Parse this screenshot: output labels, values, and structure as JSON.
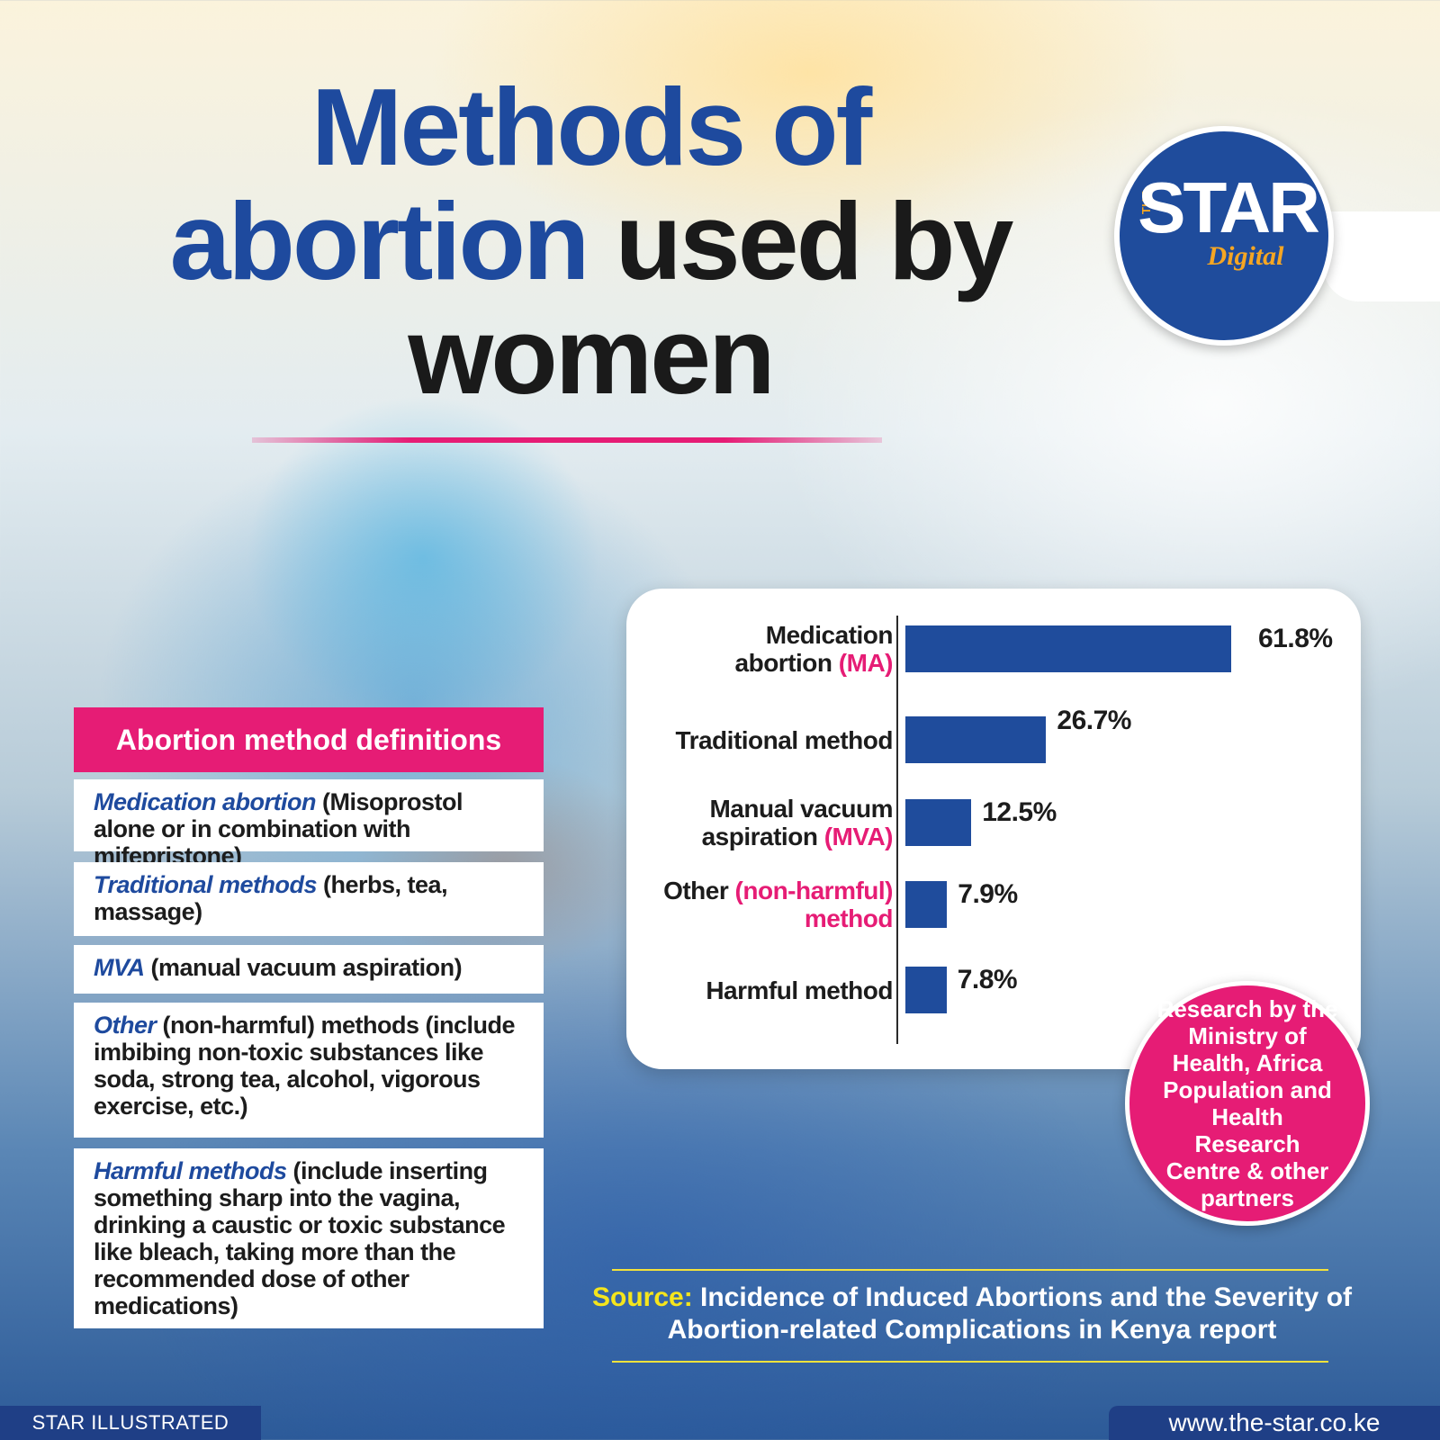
{
  "title": {
    "line1": "Methods of",
    "line2_highlight": "abortion",
    "line2_rest": " used by",
    "line3": "women"
  },
  "logo": {
    "small": "THE",
    "main": "STAR",
    "sub": "Digital"
  },
  "definitions": {
    "header": "Abortion method definitions",
    "items": [
      {
        "term": "Medication abortion",
        "text": " (Misoprostol alone or in combination with mifepristone)"
      },
      {
        "term": "Traditional methods",
        "text": " (herbs, tea, massage)"
      },
      {
        "term": "MVA",
        "text": " (manual vacuum aspiration)"
      },
      {
        "term": "Other",
        "text": " (non-harmful) methods (include imbibing non-toxic substances like soda, strong tea, alcohol, vigorous exercise, etc.)"
      },
      {
        "term": "Harmful methods",
        "text": " (include inserting something sharp into the vagina, drinking a caustic or toxic substance like bleach, taking more than the recommended dose of other medications)"
      }
    ]
  },
  "chart_data": {
    "type": "bar",
    "orientation": "horizontal",
    "categories": [
      {
        "lines": [
          {
            "parts": [
              {
                "t": "Medication"
              }
            ]
          },
          {
            "parts": [
              {
                "t": "abortion "
              },
              {
                "t": "(MA)",
                "pink": true
              }
            ]
          }
        ]
      },
      {
        "lines": [
          {
            "parts": [
              {
                "t": "Traditional method"
              }
            ]
          }
        ]
      },
      {
        "lines": [
          {
            "parts": [
              {
                "t": "Manual vacuum"
              }
            ]
          },
          {
            "parts": [
              {
                "t": "aspiration "
              },
              {
                "t": "(MVA)",
                "pink": true
              }
            ]
          }
        ]
      },
      {
        "lines": [
          {
            "parts": [
              {
                "t": "Other "
              },
              {
                "t": "(non-harmful)",
                "pink": true
              }
            ]
          },
          {
            "parts": [
              {
                "t": "method",
                "pink": true
              }
            ]
          }
        ]
      },
      {
        "lines": [
          {
            "parts": [
              {
                "t": "Harmful method"
              }
            ]
          }
        ]
      }
    ],
    "values": [
      61.8,
      26.7,
      12.5,
      7.9,
      7.8
    ],
    "value_labels": [
      "61.8%",
      "26.7%",
      "12.5%",
      "7.9%",
      "7.8%"
    ],
    "unit": "%",
    "xlim": [
      0,
      61.8
    ],
    "bar_color": "#1f4c9c",
    "grid": false,
    "legend": "none"
  },
  "research_note": "Research by the Ministry of Health, Africa Population and Health Research Centre & other partners",
  "source": {
    "label": "Source:",
    "text": " Incidence of Induced Abortions and the Severity of Abortion-related Complications in Kenya report"
  },
  "footer": {
    "left": "STAR ILLUSTRATED",
    "right": "www.the-star.co.ke"
  },
  "colors": {
    "brand_blue": "#1e4a9e",
    "accent_pink": "#e61c75",
    "source_yellow": "#f5e51c"
  }
}
